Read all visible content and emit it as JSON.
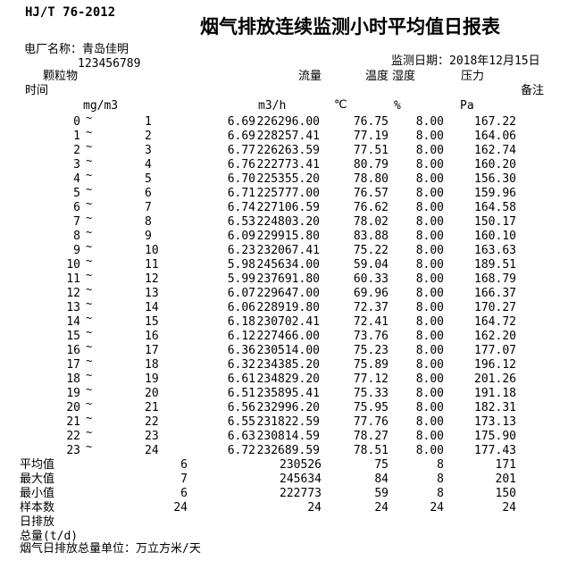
{
  "page": {
    "standard_code": "HJ/T 76-2012",
    "title": "烟气排放连续监测小时平均值日报表",
    "plant_name_line": "电厂名称：青岛佳明",
    "plant_mark": "`",
    "plant_code": "123456789",
    "monitor_date_line": "监测日期：2018年12月15日",
    "footer_note": "烟气日排放总量单位：万立方米/天"
  },
  "columns": {
    "particulate": "颗粒物",
    "time": "时间",
    "flow": "流量",
    "temperature": "温度",
    "humidity": "湿度",
    "pressure": "压力",
    "remark": "备注"
  },
  "units": {
    "particulate": "mg/m3",
    "flow": "m3/h",
    "temperature": "℃",
    "humidity": "%",
    "pressure": "Pa"
  },
  "tilde": "~",
  "rows": [
    {
      "h1": "0",
      "h2": "1",
      "pm": "6.69",
      "flow": "226296.00",
      "temp": "76.75",
      "hum": "8.00",
      "pres": "167.22"
    },
    {
      "h1": "1",
      "h2": "2",
      "pm": "6.69",
      "flow": "228257.41",
      "temp": "77.19",
      "hum": "8.00",
      "pres": "164.06"
    },
    {
      "h1": "2",
      "h2": "3",
      "pm": "6.77",
      "flow": "226263.59",
      "temp": "77.51",
      "hum": "8.00",
      "pres": "162.74"
    },
    {
      "h1": "3",
      "h2": "4",
      "pm": "6.76",
      "flow": "222773.41",
      "temp": "80.79",
      "hum": "8.00",
      "pres": "160.20"
    },
    {
      "h1": "4",
      "h2": "5",
      "pm": "6.70",
      "flow": "225355.20",
      "temp": "78.80",
      "hum": "8.00",
      "pres": "156.30"
    },
    {
      "h1": "5",
      "h2": "6",
      "pm": "6.71",
      "flow": "225777.00",
      "temp": "76.57",
      "hum": "8.00",
      "pres": "159.96"
    },
    {
      "h1": "6",
      "h2": "7",
      "pm": "6.74",
      "flow": "227106.59",
      "temp": "76.62",
      "hum": "8.00",
      "pres": "164.58"
    },
    {
      "h1": "7",
      "h2": "8",
      "pm": "6.53",
      "flow": "224803.20",
      "temp": "78.02",
      "hum": "8.00",
      "pres": "150.17"
    },
    {
      "h1": "8",
      "h2": "9",
      "pm": "6.09",
      "flow": "229915.80",
      "temp": "83.88",
      "hum": "8.00",
      "pres": "160.10"
    },
    {
      "h1": "9",
      "h2": "10",
      "pm": "6.23",
      "flow": "232067.41",
      "temp": "75.22",
      "hum": "8.00",
      "pres": "163.63"
    },
    {
      "h1": "10",
      "h2": "11",
      "pm": "5.98",
      "flow": "245634.00",
      "temp": "59.04",
      "hum": "8.00",
      "pres": "189.51"
    },
    {
      "h1": "11",
      "h2": "12",
      "pm": "5.99",
      "flow": "237691.80",
      "temp": "60.33",
      "hum": "8.00",
      "pres": "168.79"
    },
    {
      "h1": "12",
      "h2": "13",
      "pm": "6.07",
      "flow": "229647.00",
      "temp": "69.96",
      "hum": "8.00",
      "pres": "166.37"
    },
    {
      "h1": "13",
      "h2": "14",
      "pm": "6.06",
      "flow": "228919.80",
      "temp": "72.37",
      "hum": "8.00",
      "pres": "170.27"
    },
    {
      "h1": "14",
      "h2": "15",
      "pm": "6.18",
      "flow": "230702.41",
      "temp": "72.41",
      "hum": "8.00",
      "pres": "164.72"
    },
    {
      "h1": "15",
      "h2": "16",
      "pm": "6.12",
      "flow": "227466.00",
      "temp": "73.76",
      "hum": "8.00",
      "pres": "162.20"
    },
    {
      "h1": "16",
      "h2": "17",
      "pm": "6.36",
      "flow": "230514.00",
      "temp": "75.23",
      "hum": "8.00",
      "pres": "177.07"
    },
    {
      "h1": "17",
      "h2": "18",
      "pm": "6.32",
      "flow": "234385.20",
      "temp": "75.89",
      "hum": "8.00",
      "pres": "196.12"
    },
    {
      "h1": "18",
      "h2": "19",
      "pm": "6.61",
      "flow": "234829.20",
      "temp": "77.12",
      "hum": "8.00",
      "pres": "201.26"
    },
    {
      "h1": "19",
      "h2": "20",
      "pm": "6.51",
      "flow": "235895.41",
      "temp": "75.33",
      "hum": "8.00",
      "pres": "191.18"
    },
    {
      "h1": "20",
      "h2": "21",
      "pm": "6.56",
      "flow": "232996.20",
      "temp": "75.95",
      "hum": "8.00",
      "pres": "182.31"
    },
    {
      "h1": "21",
      "h2": "22",
      "pm": "6.55",
      "flow": "231822.59",
      "temp": "77.76",
      "hum": "8.00",
      "pres": "173.13"
    },
    {
      "h1": "22",
      "h2": "23",
      "pm": "6.63",
      "flow": "230814.59",
      "temp": "78.27",
      "hum": "8.00",
      "pres": "175.90"
    },
    {
      "h1": "23",
      "h2": "24",
      "pm": "6.72",
      "flow": "232689.59",
      "temp": "78.51",
      "hum": "8.00",
      "pres": "177.43"
    }
  ],
  "summary": [
    {
      "label": "平均值",
      "pm": "6",
      "flow": "230526",
      "temp": "75",
      "hum": "8",
      "pres": "171"
    },
    {
      "label": "最大值",
      "pm": "7",
      "flow": "245634",
      "temp": "84",
      "hum": "8",
      "pres": "201"
    },
    {
      "label": "最小值",
      "pm": "6",
      "flow": "222773",
      "temp": "59",
      "hum": "8",
      "pres": "150"
    },
    {
      "label": "样本数",
      "pm": "24",
      "flow": "24",
      "temp": "24",
      "hum": "24",
      "pres": "24"
    },
    {
      "label": "日排放",
      "pm": "",
      "flow": "",
      "temp": "",
      "hum": "",
      "pres": ""
    },
    {
      "label": "总量(t/d)",
      "pm": "",
      "flow": "",
      "temp": "",
      "hum": "",
      "pres": ""
    }
  ]
}
